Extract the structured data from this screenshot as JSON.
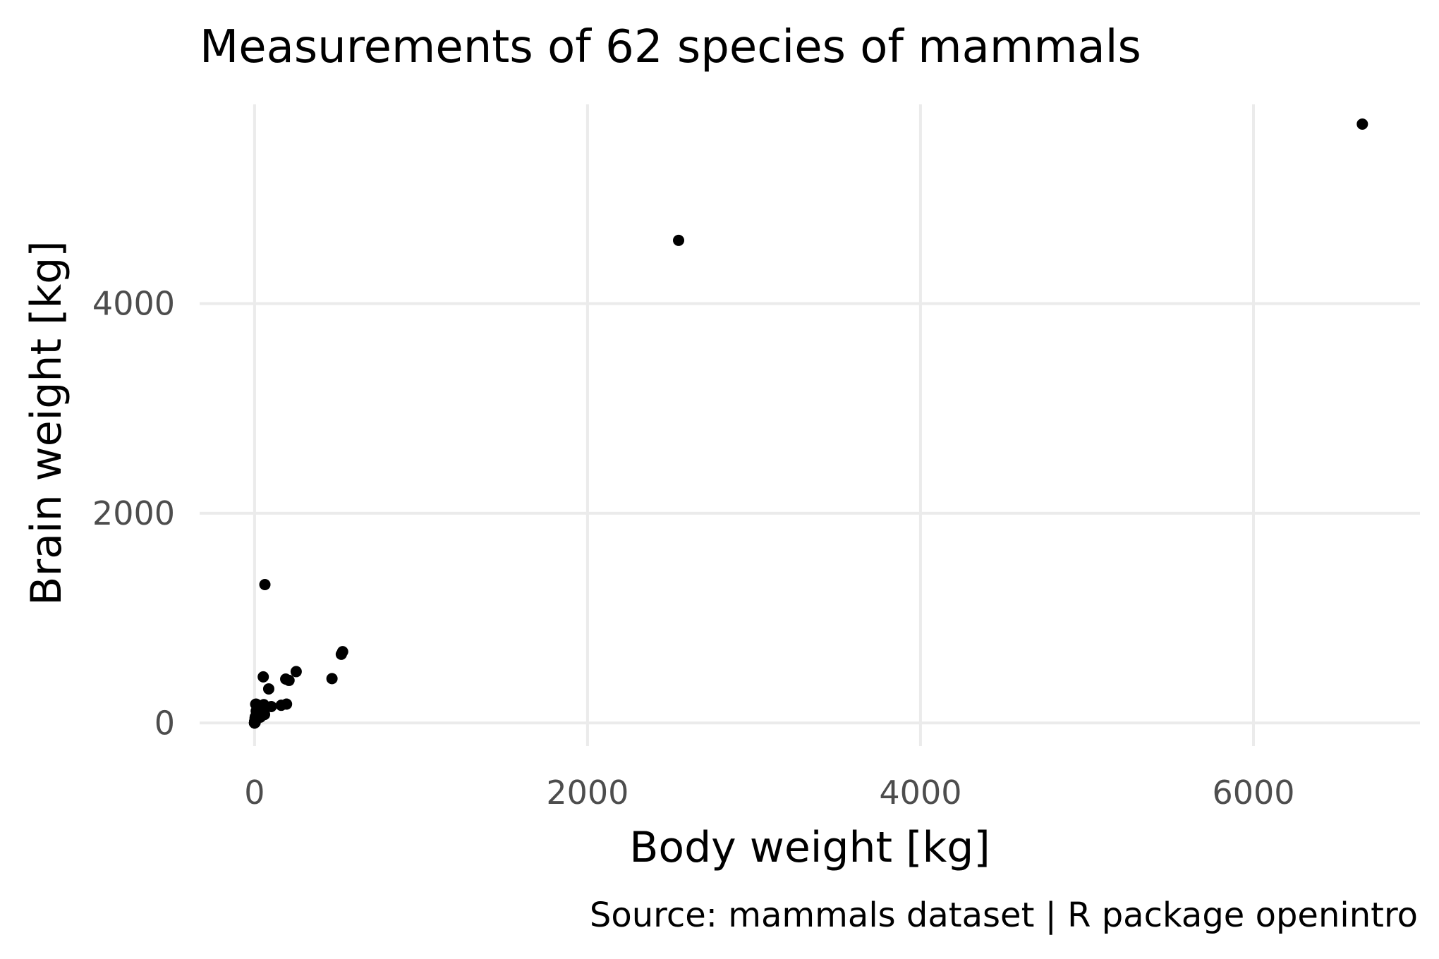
{
  "chart_data": {
    "type": "scatter",
    "title": "Measurements of 62 species of mammals",
    "xlabel": "Body weight [kg]",
    "ylabel": "Brain weight [kg]",
    "caption": "Source: mammals dataset | R package openintro",
    "xlim": [
      -330,
      7000
    ],
    "ylim": [
      -220,
      5900
    ],
    "x_ticks": [
      0,
      2000,
      4000,
      6000
    ],
    "y_ticks": [
      0,
      2000,
      4000
    ],
    "x_tick_labels": [
      "0",
      "2000",
      "4000",
      "6000"
    ],
    "y_tick_labels": [
      "0",
      "2000",
      "4000"
    ],
    "grid": true,
    "colors": {
      "point": "#000000",
      "grid": "#ebebeb",
      "tick_label": "#4d4d4d"
    },
    "series": [
      {
        "points": [
          [
            6654,
            5712
          ],
          [
            1,
            6.6
          ],
          [
            3.385,
            44.5
          ],
          [
            0.92,
            5.7
          ],
          [
            2547,
            4603
          ],
          [
            10.55,
            179.5
          ],
          [
            0.023,
            0.3
          ],
          [
            160,
            169
          ],
          [
            3.3,
            25.6
          ],
          [
            52.16,
            440
          ],
          [
            0.425,
            6.4
          ],
          [
            465,
            423
          ],
          [
            0.55,
            2.4
          ],
          [
            187.1,
            419
          ],
          [
            0.075,
            1.2
          ],
          [
            3,
            25
          ],
          [
            0.785,
            3.5
          ],
          [
            0.2,
            5
          ],
          [
            1.41,
            17.5
          ],
          [
            60,
            81
          ],
          [
            529,
            680
          ],
          [
            27.66,
            115
          ],
          [
            0.12,
            1
          ],
          [
            207,
            406
          ],
          [
            85,
            325
          ],
          [
            36.33,
            119.5
          ],
          [
            0.101,
            4
          ],
          [
            1.04,
            5.5
          ],
          [
            521,
            655
          ],
          [
            100,
            157
          ],
          [
            35,
            56
          ],
          [
            0.005,
            0.14
          ],
          [
            0.01,
            0.25
          ],
          [
            62,
            1320
          ],
          [
            0.122,
            3
          ],
          [
            1.35,
            8.1
          ],
          [
            0.023,
            0.4
          ],
          [
            0.048,
            0.33
          ],
          [
            1.7,
            6.3
          ],
          [
            3.5,
            10.8
          ],
          [
            250,
            490
          ],
          [
            0.48,
            15.5
          ],
          [
            10,
            115
          ],
          [
            1.62,
            11.4
          ],
          [
            192,
            180
          ],
          [
            2.5,
            12.1
          ],
          [
            4.288,
            39.2
          ],
          [
            0.28,
            1.9
          ],
          [
            4.235,
            50.4
          ],
          [
            6.8,
            179
          ],
          [
            0.75,
            12.3
          ],
          [
            3.6,
            21
          ],
          [
            14.83,
            98.2
          ],
          [
            55.5,
            175
          ],
          [
            1.4,
            12.5
          ],
          [
            0.06,
            1
          ],
          [
            0.9,
            2.6
          ],
          [
            2,
            12.3
          ],
          [
            0.104,
            2.5
          ],
          [
            4.19,
            58
          ],
          [
            3.5,
            3.9
          ],
          [
            4.05,
            17
          ]
        ]
      }
    ]
  }
}
